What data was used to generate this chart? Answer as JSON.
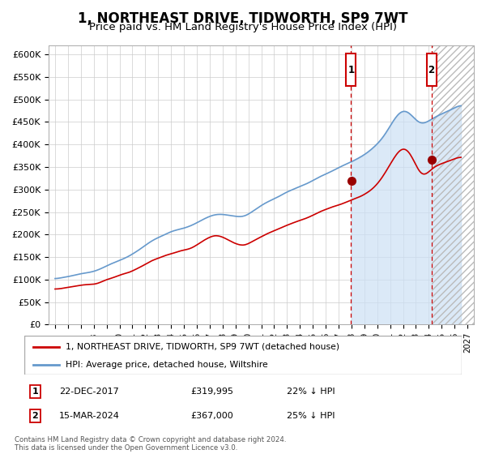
{
  "title": "1, NORTHEAST DRIVE, TIDWORTH, SP9 7WT",
  "subtitle": "Price paid vs. HM Land Registry's House Price Index (HPI)",
  "title_fontsize": 12,
  "subtitle_fontsize": 9.5,
  "background_color": "#ffffff",
  "grid_color": "#cccccc",
  "hpi_color": "#6699cc",
  "hpi_fill_color": "#cce0f5",
  "red_line_color": "#cc0000",
  "vline_color": "#cc0000",
  "marker_color": "#990000",
  "legend_label_red": "1, NORTHEAST DRIVE, TIDWORTH, SP9 7WT (detached house)",
  "legend_label_blue": "HPI: Average price, detached house, Wiltshire",
  "sale1_date": "22-DEC-2017",
  "sale1_price": "£319,995",
  "sale1_note": "22% ↓ HPI",
  "sale1_year": 2017.97,
  "sale1_value": 319995,
  "sale2_date": "15-MAR-2024",
  "sale2_price": "£367,000",
  "sale2_note": "25% ↓ HPI",
  "sale2_year": 2024.21,
  "sale2_value": 367000,
  "footer": "Contains HM Land Registry data © Crown copyright and database right 2024.\nThis data is licensed under the Open Government Licence v3.0.",
  "ylim": [
    0,
    620000
  ],
  "yticks": [
    0,
    50000,
    100000,
    150000,
    200000,
    250000,
    300000,
    350000,
    400000,
    450000,
    500000,
    550000,
    600000
  ],
  "ytick_labels": [
    "£0",
    "£50K",
    "£100K",
    "£150K",
    "£200K",
    "£250K",
    "£300K",
    "£350K",
    "£400K",
    "£450K",
    "£500K",
    "£550K",
    "£600K"
  ],
  "xlim_start": 1994.5,
  "xlim_end": 2027.5,
  "hatch_start": 2024.21,
  "hatch_end": 2027.5
}
